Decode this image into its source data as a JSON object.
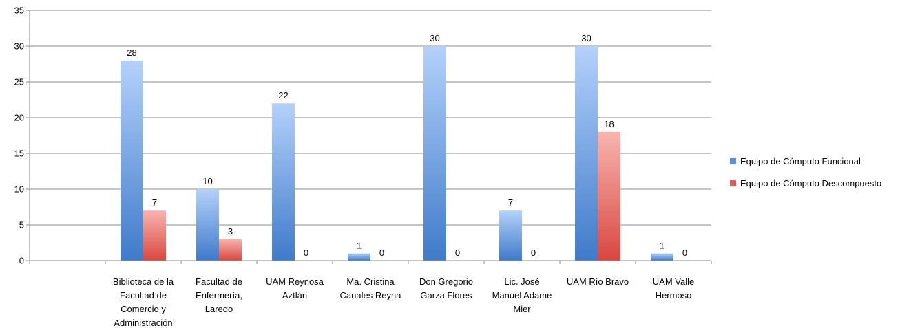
{
  "chart_data": {
    "type": "bar",
    "title": "",
    "xlabel": "",
    "ylabel": "",
    "ylim": [
      0,
      35
    ],
    "yticks": [
      0,
      5,
      10,
      15,
      20,
      25,
      30,
      35
    ],
    "grid": true,
    "legend_position": "right",
    "categories": [
      "",
      [
        "Biblioteca de la",
        "Facultad de",
        "Comercio y",
        "Administración"
      ],
      [
        "Facultad de",
        "Enfermería,",
        "Laredo"
      ],
      [
        "UAM Reynosa",
        "Aztlán"
      ],
      [
        "Ma. Cristina",
        "Canales Reyna"
      ],
      [
        "Don Gregorio",
        "Garza Flores"
      ],
      [
        "Lic. José",
        "Manuel Adame",
        "Mier"
      ],
      [
        "UAM Río Bravo"
      ],
      [
        "UAM Valle",
        "Hermoso"
      ]
    ],
    "series": [
      {
        "name": "Equipo de Cómputo Funcional",
        "color": "#5b8fd6",
        "values": [
          null,
          28,
          10,
          22,
          1,
          30,
          7,
          30,
          1
        ]
      },
      {
        "name": "Equipo de Cómputo Descompuesto",
        "color": "#dc5f5a",
        "values": [
          null,
          7,
          3,
          0,
          0,
          0,
          0,
          18,
          0
        ]
      }
    ]
  }
}
